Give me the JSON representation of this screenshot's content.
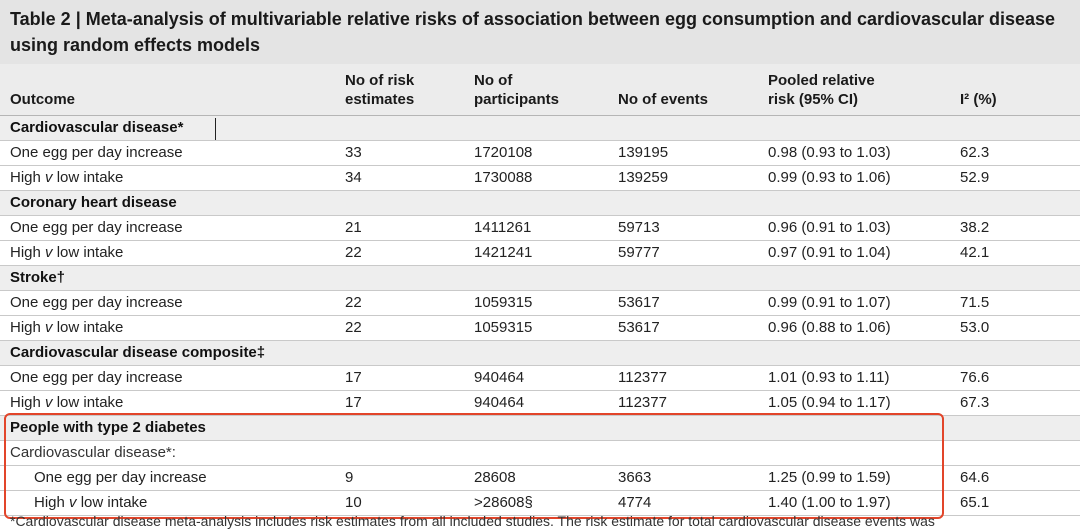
{
  "title": "Table 2 | Meta-analysis of multivariable relative risks of association between egg consumption and cardiovascular disease using random effects models",
  "headers": [
    [
      "Outcome"
    ],
    [
      "No of risk",
      "estimates"
    ],
    [
      "No of",
      "participants"
    ],
    [
      "No of events"
    ],
    [
      "Pooled relative",
      "risk (95% CI)"
    ],
    [
      "I² (%)"
    ]
  ],
  "sections": [
    {
      "label": "Cardiovascular disease*",
      "rows": [
        [
          "One egg per day increase",
          "33",
          "1720108",
          "139195",
          "0.98 (0.93 to 1.03)",
          "62.3"
        ],
        [
          "High v low intake",
          "34",
          "1730088",
          "139259",
          "0.99 (0.93 to 1.06)",
          "52.9"
        ]
      ]
    },
    {
      "label": "Coronary heart disease",
      "rows": [
        [
          "One egg per day increase",
          "21",
          "1411261",
          "59713",
          "0.96 (0.91 to 1.03)",
          "38.2"
        ],
        [
          "High v low intake",
          "22",
          "1421241",
          "59777",
          "0.97 (0.91 to 1.04)",
          "42.1"
        ]
      ]
    },
    {
      "label": "Stroke†",
      "rows": [
        [
          "One egg per day increase",
          "22",
          "1059315",
          "53617",
          "0.99 (0.91 to 1.07)",
          "71.5"
        ],
        [
          "High v low intake",
          "22",
          "1059315",
          "53617",
          "0.96 (0.88 to 1.06)",
          "53.0"
        ]
      ]
    },
    {
      "label": "Cardiovascular disease composite‡",
      "rows": [
        [
          "One egg per day increase",
          "17",
          "940464",
          "112377",
          "1.01 (0.93 to 1.11)",
          "76.6"
        ],
        [
          "High v low intake",
          "17",
          "940464",
          "112377",
          "1.05 (0.94 to 1.17)",
          "67.3"
        ]
      ]
    },
    {
      "label": "People with type 2 diabetes",
      "sublabel": "Cardiovascular disease*:",
      "rows": [
        [
          "One egg per day increase",
          "9",
          "28608",
          "3663",
          "1.25 (0.99 to 1.59)",
          "64.6"
        ],
        [
          "High v low intake",
          "10",
          ">28608§",
          "4774",
          "1.40 (1.00 to 1.97)",
          "65.1"
        ]
      ]
    }
  ],
  "footnote": "*Cardiovascular disease meta-analysis includes risk estimates from all included studies. The risk estimate for total cardiovascular disease events was"
}
